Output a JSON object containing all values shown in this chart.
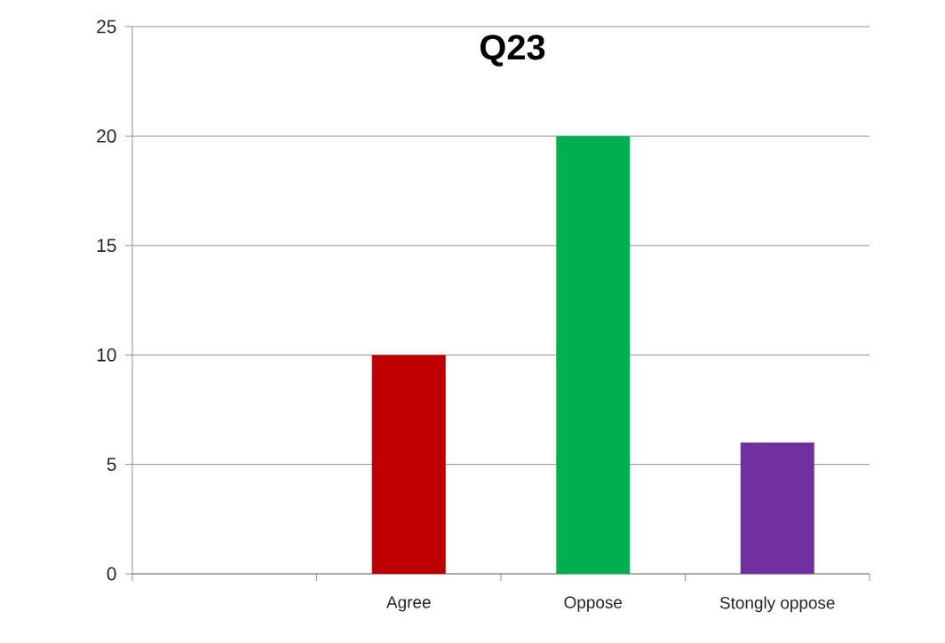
{
  "chart_data": {
    "type": "bar",
    "title": "Q23",
    "categories": [
      null,
      "Agree",
      "Oppose",
      "Stongly oppose"
    ],
    "values": [
      null,
      10,
      20,
      6
    ],
    "colors": [
      null,
      "#c00000",
      "#00b050",
      "#7030a0"
    ],
    "ylim": [
      0,
      25
    ],
    "yticks": [
      0,
      5,
      10,
      15,
      20,
      25
    ],
    "grid": "y"
  }
}
